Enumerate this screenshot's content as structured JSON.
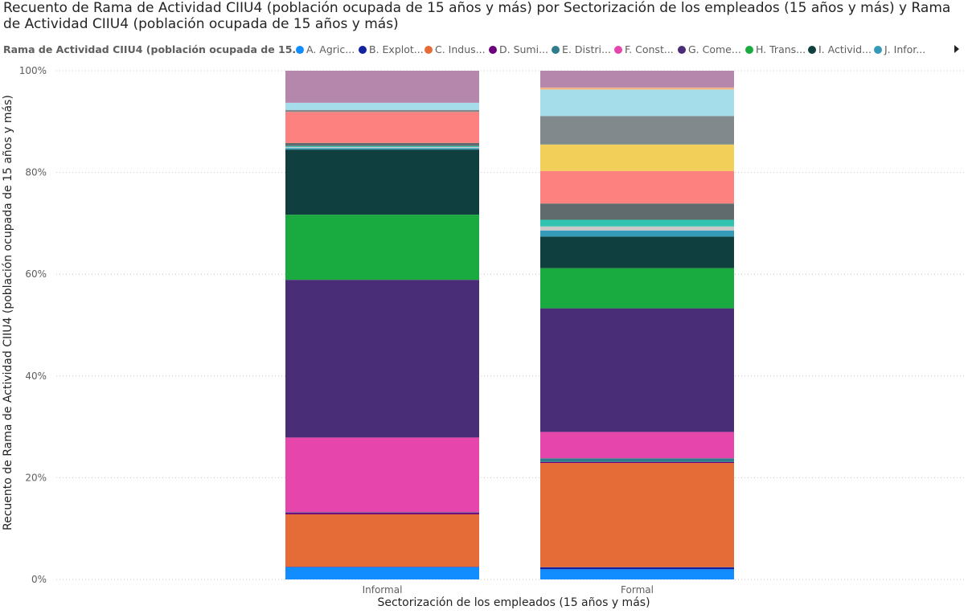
{
  "chart_data": {
    "type": "bar",
    "stacked": "100%",
    "title": "Recuento de Rama de Actividad CIIU4 (población ocupada de 15 años y más) por Sectorización de los empleados (15 años y más) y Rama de Actividad CIIU4 (población ocupada de 15 años y más)",
    "xlabel": "Sectorización de los empleados (15 años y más)",
    "ylabel": "Recuento de Rama de Actividad CIIU4 (población ocupada de 15 años y más)",
    "yticks": [
      "0%",
      "20%",
      "40%",
      "60%",
      "80%",
      "100%"
    ],
    "ylim": [
      0,
      100
    ],
    "grid": true,
    "legend_title": "Rama de Actividad CIIU4 (población ocupada de 15...",
    "legend_placement": "top",
    "categories": [
      "Informal",
      "Formal"
    ],
    "legend": [
      {
        "label": "A. Agric...",
        "color": "#118DFF"
      },
      {
        "label": "B. Explot...",
        "color": "#12239E"
      },
      {
        "label": "C. Indus...",
        "color": "#E66C37"
      },
      {
        "label": "D. Sumi...",
        "color": "#6B007B"
      },
      {
        "label": "E. Distri...",
        "color": "#2E7D8C"
      },
      {
        "label": "F. Const...",
        "color": "#E645AB"
      },
      {
        "label": "G. Come...",
        "color": "#4A2D77"
      },
      {
        "label": "H. Trans...",
        "color": "#1AAB40"
      },
      {
        "label": "I. Activid...",
        "color": "#0F403F"
      },
      {
        "label": "J. Infor...",
        "color": "#3599B8"
      }
    ],
    "series": [
      {
        "color": "#118DFF",
        "values": [
          2.4,
          2.0
        ]
      },
      {
        "color": "#12239E",
        "values": [
          0.1,
          0.4
        ]
      },
      {
        "color": "#E66C37",
        "values": [
          10.3,
          20.5
        ]
      },
      {
        "color": "#6B007B",
        "values": [
          0.3,
          0.2
        ]
      },
      {
        "color": "#2E7D8C",
        "values": [
          0.1,
          0.7
        ]
      },
      {
        "color": "#E645AB",
        "values": [
          14.7,
          5.2
        ]
      },
      {
        "color": "#4A2D77",
        "values": [
          31.0,
          24.3
        ]
      },
      {
        "color": "#1AAB40",
        "values": [
          12.8,
          7.9
        ]
      },
      {
        "color": "#0F403F",
        "values": [
          12.8,
          6.2
        ]
      },
      {
        "color": "#3599B8",
        "values": [
          0.3,
          1.2
        ]
      },
      {
        "color": "#C8C8C8",
        "values": [
          0.2,
          0.8
        ]
      },
      {
        "color": "#2FC3B0",
        "values": [
          0.2,
          1.3
        ]
      },
      {
        "color": "#5F6B6D",
        "values": [
          0.6,
          3.2
        ]
      },
      {
        "color": "#FD817E",
        "values": [
          6.1,
          6.4
        ]
      },
      {
        "color": "#F2CF59",
        "values": [
          0.0,
          5.2
        ]
      },
      {
        "color": "#808A8C",
        "values": [
          0.4,
          5.6
        ]
      },
      {
        "color": "#A6DDEB",
        "values": [
          1.4,
          5.2
        ]
      },
      {
        "color": "#F5B686",
        "values": [
          0.0,
          0.4
        ]
      },
      {
        "color": "#B687AC",
        "values": [
          6.3,
          3.3
        ]
      }
    ]
  }
}
